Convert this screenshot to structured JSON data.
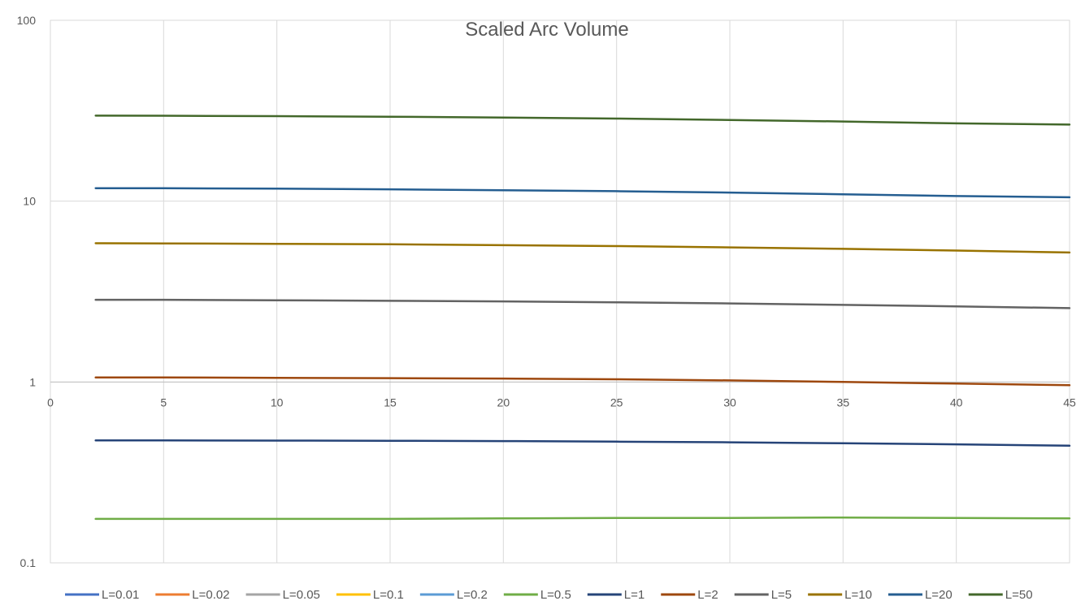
{
  "chart_data": {
    "type": "line",
    "title": "Scaled Arc Volume",
    "xlabel": "",
    "ylabel": "",
    "xlim": [
      0,
      45
    ],
    "ylim": [
      0.1,
      100
    ],
    "y_scale": "log",
    "grid": true,
    "legend_position": "bottom",
    "x_ticks": [
      "0",
      "5",
      "10",
      "15",
      "20",
      "25",
      "30",
      "35",
      "40",
      "45"
    ],
    "y_ticks": [
      "0.1",
      "1",
      "10",
      "100"
    ],
    "x": [
      2,
      5,
      10,
      15,
      20,
      25,
      30,
      35,
      40,
      45
    ],
    "series": [
      {
        "name": "L=0.01",
        "color": "#4472C4",
        "values": [
          null,
          null,
          null,
          null,
          null,
          null,
          null,
          null,
          null,
          null
        ]
      },
      {
        "name": "L=0.02",
        "color": "#ED7D31",
        "values": [
          null,
          null,
          null,
          null,
          null,
          null,
          null,
          null,
          null,
          null
        ]
      },
      {
        "name": "L=0.05",
        "color": "#A5A5A5",
        "values": [
          null,
          null,
          null,
          null,
          null,
          null,
          null,
          null,
          null,
          null
        ]
      },
      {
        "name": "L=0.1",
        "color": "#FFC000",
        "values": [
          null,
          null,
          null,
          null,
          null,
          null,
          null,
          null,
          null,
          null
        ]
      },
      {
        "name": "L=0.2",
        "color": "#5B9BD5",
        "values": [
          null,
          null,
          null,
          null,
          null,
          null,
          null,
          null,
          null,
          null
        ]
      },
      {
        "name": "L=0.5",
        "color": "#70AD47",
        "values": [
          0.175,
          0.175,
          0.175,
          0.175,
          0.176,
          0.177,
          0.177,
          0.178,
          0.177,
          0.176
        ]
      },
      {
        "name": "L=1",
        "color": "#264478",
        "values": [
          0.475,
          0.475,
          0.474,
          0.473,
          0.471,
          0.468,
          0.464,
          0.458,
          0.452,
          0.444
        ]
      },
      {
        "name": "L=2",
        "color": "#9E480E",
        "values": [
          1.06,
          1.06,
          1.055,
          1.05,
          1.045,
          1.035,
          1.02,
          1.0,
          0.98,
          0.96
        ]
      },
      {
        "name": "L=5",
        "color": "#636363",
        "values": [
          2.85,
          2.85,
          2.83,
          2.81,
          2.79,
          2.76,
          2.72,
          2.67,
          2.62,
          2.56
        ]
      },
      {
        "name": "L=10",
        "color": "#997300",
        "values": [
          5.85,
          5.84,
          5.81,
          5.77,
          5.71,
          5.64,
          5.55,
          5.45,
          5.33,
          5.2
        ]
      },
      {
        "name": "L=20",
        "color": "#255E91",
        "values": [
          11.8,
          11.78,
          11.72,
          11.63,
          11.5,
          11.35,
          11.15,
          10.92,
          10.67,
          10.5
        ]
      },
      {
        "name": "L=50",
        "color": "#43682B",
        "values": [
          29.7,
          29.66,
          29.52,
          29.3,
          28.99,
          28.6,
          28.12,
          27.56,
          26.92,
          26.5
        ]
      }
    ]
  }
}
